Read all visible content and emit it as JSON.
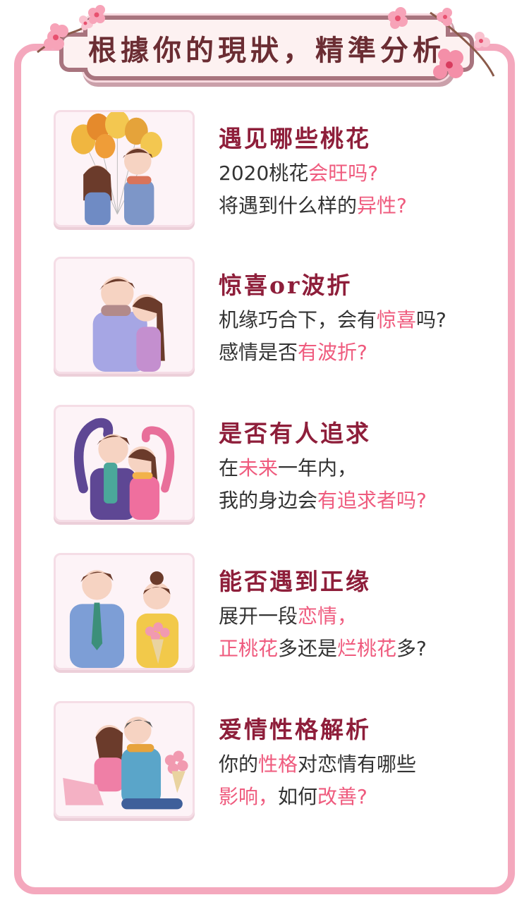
{
  "banner": {
    "title": "根據你的現狀，精準分析"
  },
  "colors": {
    "heading": "#8e1e3a",
    "highlight": "#ef5b7e",
    "frame": "#f4a8bd",
    "text": "#333333"
  },
  "items": [
    {
      "title": "遇见哪些桃花",
      "line1": [
        {
          "t": "2020桃花",
          "h": false
        },
        {
          "t": "会旺吗?",
          "h": true
        }
      ],
      "line2": [
        {
          "t": "将遇到什么样的",
          "h": false
        },
        {
          "t": "异性?",
          "h": true
        }
      ],
      "illustration": "couple-with-balloons"
    },
    {
      "title": "惊喜or波折",
      "line1": [
        {
          "t": "机缘巧合下，会有",
          "h": false
        },
        {
          "t": "惊喜",
          "h": true
        },
        {
          "t": "吗?",
          "h": false
        }
      ],
      "line2": [
        {
          "t": "感情是否",
          "h": false
        },
        {
          "t": "有波折?",
          "h": true
        }
      ],
      "illustration": "couple-embracing"
    },
    {
      "title": "是否有人追求",
      "line1": [
        {
          "t": "在",
          "h": false
        },
        {
          "t": "未来",
          "h": true
        },
        {
          "t": "一年内，",
          "h": false
        }
      ],
      "line2": [
        {
          "t": "我的身边会",
          "h": false
        },
        {
          "t": "有追求者吗?",
          "h": true
        }
      ],
      "illustration": "couple-heart-arms"
    },
    {
      "title": "能否遇到正缘",
      "line1": [
        {
          "t": "展开一段",
          "h": false
        },
        {
          "t": "恋情，",
          "h": true
        }
      ],
      "line2": [
        {
          "t": "正桃花",
          "h": true
        },
        {
          "t": "多还是",
          "h": false
        },
        {
          "t": "烂桃花",
          "h": true
        },
        {
          "t": "多?",
          "h": false
        }
      ],
      "illustration": "couple-with-bouquet"
    },
    {
      "title": "爱情性格解析",
      "line1": [
        {
          "t": "你的",
          "h": false
        },
        {
          "t": "性格",
          "h": true
        },
        {
          "t": "对恋情有哪些",
          "h": false
        }
      ],
      "line2": [
        {
          "t": "影响，",
          "h": true
        },
        {
          "t": "如何",
          "h": false
        },
        {
          "t": "改善?",
          "h": true
        }
      ],
      "illustration": "couple-sitting-back-to-back"
    }
  ]
}
